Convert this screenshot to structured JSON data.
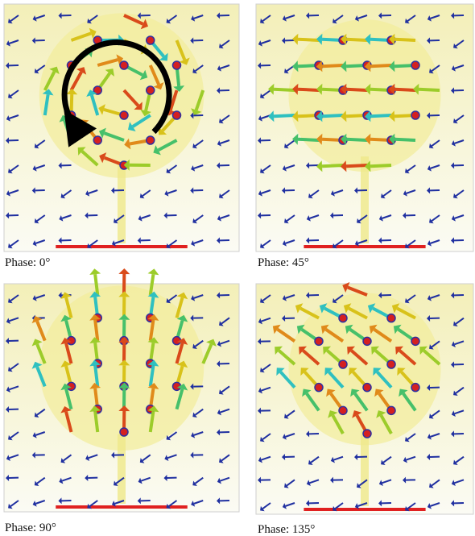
{
  "panels": [
    {
      "caption": "Phase: 0°"
    },
    {
      "caption": "Phase: 45°"
    },
    {
      "caption": "Phase: 90°"
    },
    {
      "caption": "Phase: 135°"
    }
  ]
}
